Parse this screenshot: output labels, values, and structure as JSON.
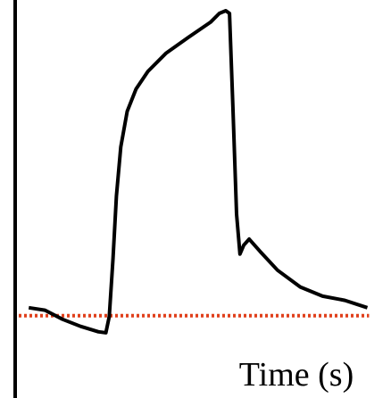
{
  "chart_data": {
    "type": "line",
    "x_label": "Time (s)",
    "x": [
      0,
      4.8,
      10,
      15.3,
      20.6,
      22.8,
      23.8,
      24.9,
      25.9,
      27.2,
      29.1,
      31.7,
      35.2,
      40.5,
      47.1,
      53.7,
      56.3,
      58.2,
      59.3,
      60.3,
      61.4,
      62.4,
      63.5,
      65.1,
      68.3,
      73.5,
      80.2,
      86.8,
      93.4,
      100
    ],
    "values": [
      2.6,
      1.8,
      -1.2,
      -3.5,
      -5.3,
      -5.6,
      -0.3,
      18.7,
      39.2,
      55.3,
      67,
      74.3,
      80.1,
      86,
      91.2,
      96.2,
      99.1,
      100,
      99.1,
      68.4,
      33.3,
      20.2,
      23.1,
      25.1,
      21.1,
      14.9,
      9.4,
      6.4,
      5,
      2.6
    ],
    "color": "#000000",
    "baseline": 0,
    "baseline_color": "#e0401c",
    "xlim": [
      -4,
      107
    ],
    "ylim": [
      -27,
      103.5
    ]
  }
}
